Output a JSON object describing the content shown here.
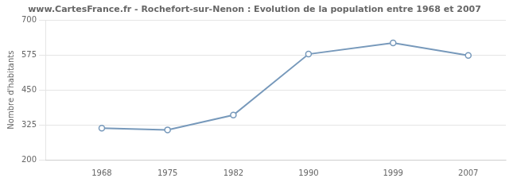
{
  "chart_data": {
    "type": "line",
    "title": "www.CartesFrance.fr - Rochefort-sur-Nenon : Evolution de la population entre 1968 et 2007",
    "ylabel": "Nombre d'habitants",
    "x": [
      1968,
      1975,
      1982,
      1990,
      1999,
      2007
    ],
    "values": [
      313,
      307,
      360,
      578,
      618,
      573
    ],
    "color": "#7799bb",
    "marker": "circle",
    "xlim": [
      1962,
      2011
    ],
    "xticks": [
      1968,
      1975,
      1982,
      1990,
      1999,
      2007
    ],
    "ylim": [
      200,
      700
    ],
    "yticks": [
      200,
      325,
      450,
      575,
      700
    ],
    "grid": "y"
  }
}
